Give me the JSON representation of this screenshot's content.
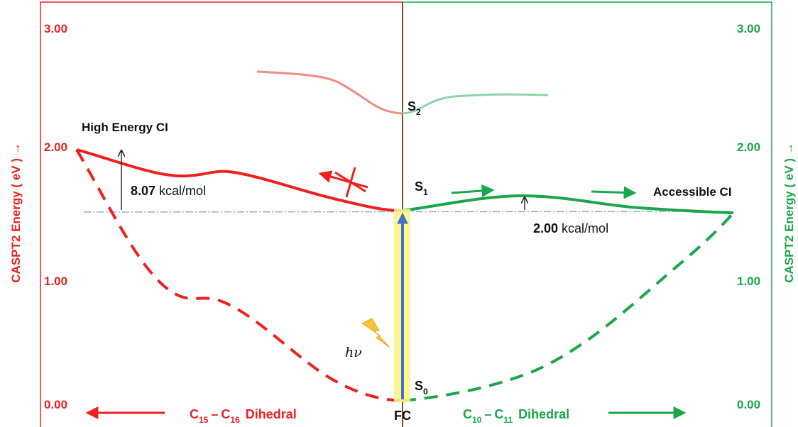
{
  "colors": {
    "left": "#ee2020",
    "right": "#1aa64a",
    "divider": "#7a3a1a",
    "arrow_blue": "#4472c4",
    "glow": "#fff38a",
    "reference_line": "#8fa9d9",
    "s2_left": "#f08b85",
    "s2_right": "#8fd3a8",
    "lightning": "#f5c335"
  },
  "left_axis": {
    "title": "CASPT2 Energy ( eV ) →",
    "ticks": [
      "3.00",
      "2.00",
      "1.00",
      "0.00"
    ]
  },
  "right_axis": {
    "title": "CASPT2 Energy ( eV ) →",
    "ticks": [
      "3.00",
      "2.00",
      "1.00",
      "0.00"
    ]
  },
  "states": {
    "s2": {
      "letter": "S",
      "sub": "2"
    },
    "s1": {
      "letter": "S",
      "sub": "1"
    },
    "s0": {
      "letter": "S",
      "sub": "0"
    }
  },
  "labels": {
    "high_energy_ci": "High Energy CI",
    "accessible_ci": "Accessible CI",
    "barrier_left_value": "8.07",
    "barrier_left_unit": "kcal/mol",
    "barrier_right_value": "2.00",
    "barrier_right_unit": "kcal/mol",
    "hv": "hν",
    "fc": "FC"
  },
  "x_axis": {
    "left": {
      "c1": "C",
      "s1": "15",
      "dash": "–",
      "c2": "C",
      "s2": "16",
      "word": "Dihedral"
    },
    "right": {
      "c1": "C",
      "s1": "10",
      "dash": "–",
      "c2": "C",
      "s2": "11",
      "word": "Dihedral"
    }
  }
}
